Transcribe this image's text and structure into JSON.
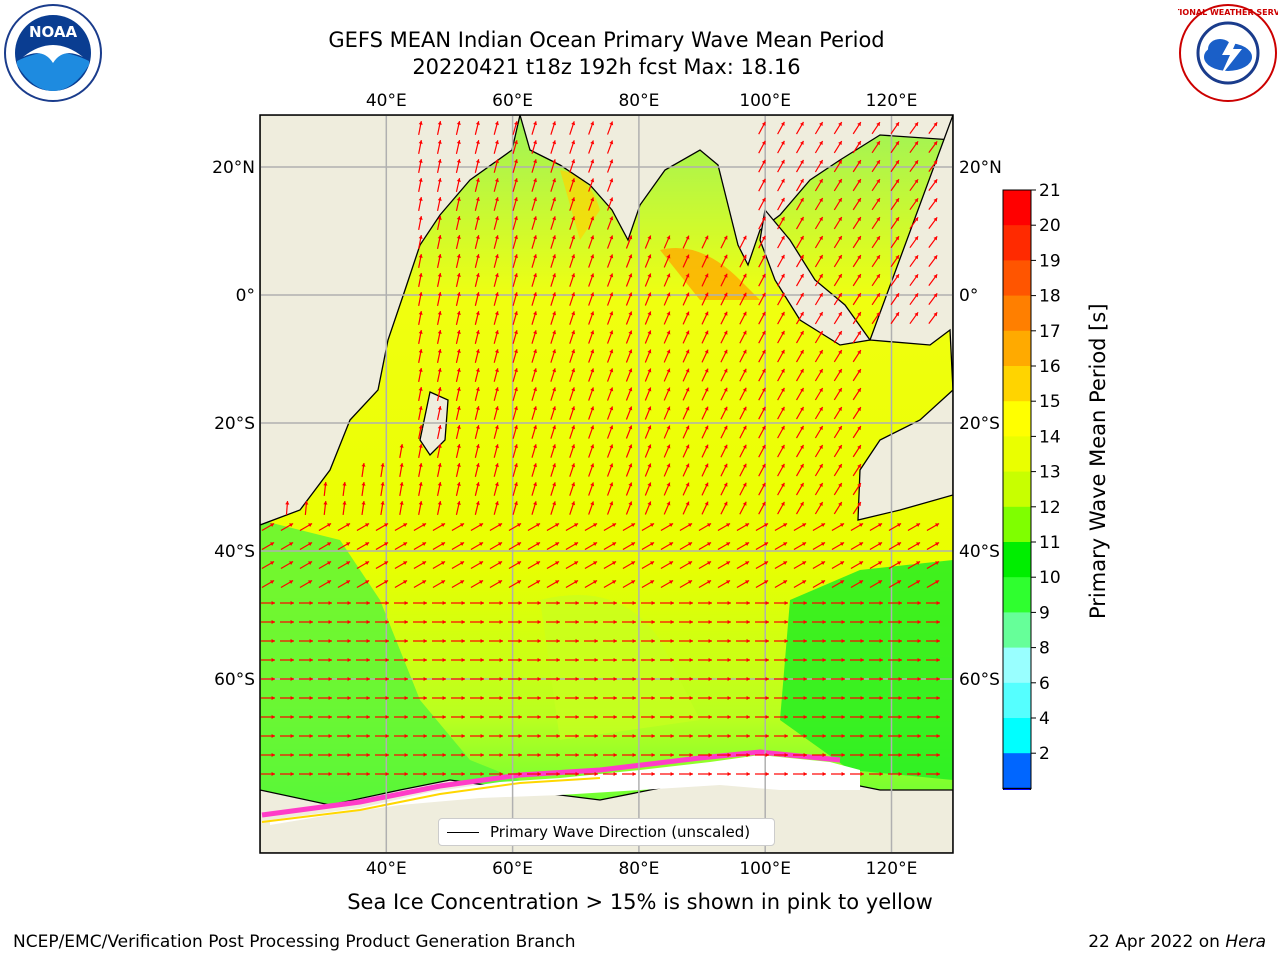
{
  "header": {
    "title_line1": "GEFS MEAN Indian Ocean Primary Wave Mean Period",
    "title_line2": "20220421 t18z 192h fcst   Max: 18.16"
  },
  "map": {
    "lon_ticks": [
      "40°E",
      "60°E",
      "80°E",
      "100°E",
      "120°E"
    ],
    "lat_ticks": [
      "20°N",
      "0°",
      "20°S",
      "40°S",
      "60°S"
    ],
    "lon_range": [
      20,
      130
    ],
    "lat_range": [
      28,
      -88
    ]
  },
  "legend": {
    "label": "Primary Wave Direction (unscaled)"
  },
  "colorbar": {
    "title": "Primary Wave Mean Period [s]",
    "tick_labels": [
      "21",
      "20",
      "19",
      "18",
      "17",
      "16",
      "15",
      "14",
      "13",
      "12",
      "11",
      "10",
      "9",
      "8",
      "6",
      "4",
      "2"
    ],
    "colors": [
      "#ff0000",
      "#ff2a00",
      "#ff5500",
      "#ff7f00",
      "#ffaa00",
      "#ffd400",
      "#ffff00",
      "#eaff00",
      "#c8ff00",
      "#7fff00",
      "#00ee00",
      "#2fff2f",
      "#66ff99",
      "#99ffff",
      "#55ffff",
      "#00ffff",
      "#0066ff"
    ],
    "under_color": "#0000ff"
  },
  "caption": "Sea Ice Concentration > 15% is shown in pink to yellow",
  "footer": {
    "left": "NCEP/EMC/Verification Post Processing Product Generation Branch",
    "right_date": "22 Apr 2022 on",
    "right_machine": "Hera"
  },
  "logos": {
    "noaa_text": "NOAA",
    "nws_text": "NATIONAL WEATHER SERVICE"
  },
  "colors": {
    "land": "#efeddd",
    "ice": "#ffffff",
    "arrow": "#ff0000",
    "grid": "#b0b0b0"
  }
}
